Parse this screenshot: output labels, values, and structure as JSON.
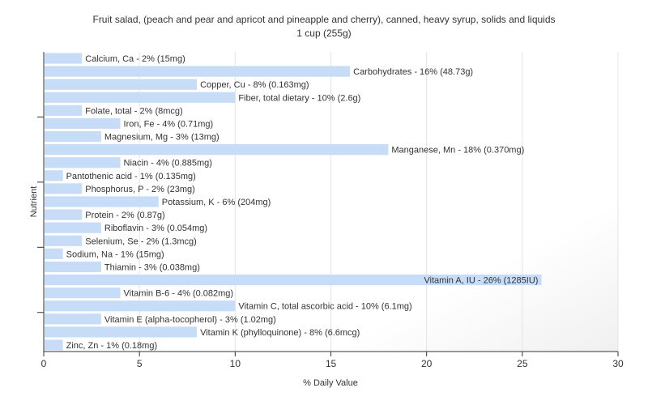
{
  "chart_data": {
    "type": "bar",
    "orientation": "horizontal",
    "title": "Fruit salad, (peach and pear and apricot and pineapple and cherry), canned, heavy syrup, solids and liquids",
    "subtitle": "1 cup (255g)",
    "xlabel": "% Daily Value",
    "ylabel": "Nutrient",
    "xlim": [
      0,
      30
    ],
    "xticks": [
      0,
      5,
      10,
      15,
      20,
      25,
      30
    ],
    "grid": true,
    "bar_color": "#c6dcf7",
    "label_color": "#333333",
    "categories": [
      "Calcium, Ca",
      "Carbohydrates",
      "Copper, Cu",
      "Fiber, total dietary",
      "Folate, total",
      "Iron, Fe",
      "Magnesium, Mg",
      "Manganese, Mn",
      "Niacin",
      "Pantothenic acid",
      "Phosphorus, P",
      "Potassium, K",
      "Protein",
      "Riboflavin",
      "Selenium, Se",
      "Sodium, Na",
      "Thiamin",
      "Vitamin A, IU",
      "Vitamin B-6",
      "Vitamin C, total ascorbic acid",
      "Vitamin E (alpha-tocopherol)",
      "Vitamin K (phylloquinone)",
      "Zinc, Zn"
    ],
    "values": [
      2,
      16,
      8,
      10,
      2,
      4,
      3,
      18,
      4,
      1,
      2,
      6,
      2,
      3,
      2,
      1,
      3,
      26,
      4,
      10,
      3,
      8,
      1
    ],
    "labels": [
      "Calcium, Ca - 2% (15mg)",
      "Carbohydrates - 16% (48.73g)",
      "Copper, Cu - 8% (0.163mg)",
      "Fiber, total dietary - 10% (2.6g)",
      "Folate, total - 2% (8mcg)",
      "Iron, Fe - 4% (0.71mg)",
      "Magnesium, Mg - 3% (13mg)",
      "Manganese, Mn - 18% (0.370mg)",
      "Niacin - 4% (0.885mg)",
      "Pantothenic acid - 1% (0.135mg)",
      "Phosphorus, P - 2% (23mg)",
      "Potassium, K - 6% (204mg)",
      "Protein - 2% (0.87g)",
      "Riboflavin - 3% (0.054mg)",
      "Selenium, Se - 2% (1.3mcg)",
      "Sodium, Na - 1% (15mg)",
      "Thiamin - 3% (0.038mg)",
      "Vitamin A, IU - 26% (1285IU)",
      "Vitamin B-6 - 4% (0.082mg)",
      "Vitamin C, total ascorbic acid - 10% (6.1mg)",
      "Vitamin E (alpha-tocopherol) - 3% (1.02mg)",
      "Vitamin K (phylloquinone) - 8% (6.6mcg)",
      "Zinc, Zn - 1% (0.18mg)"
    ]
  }
}
